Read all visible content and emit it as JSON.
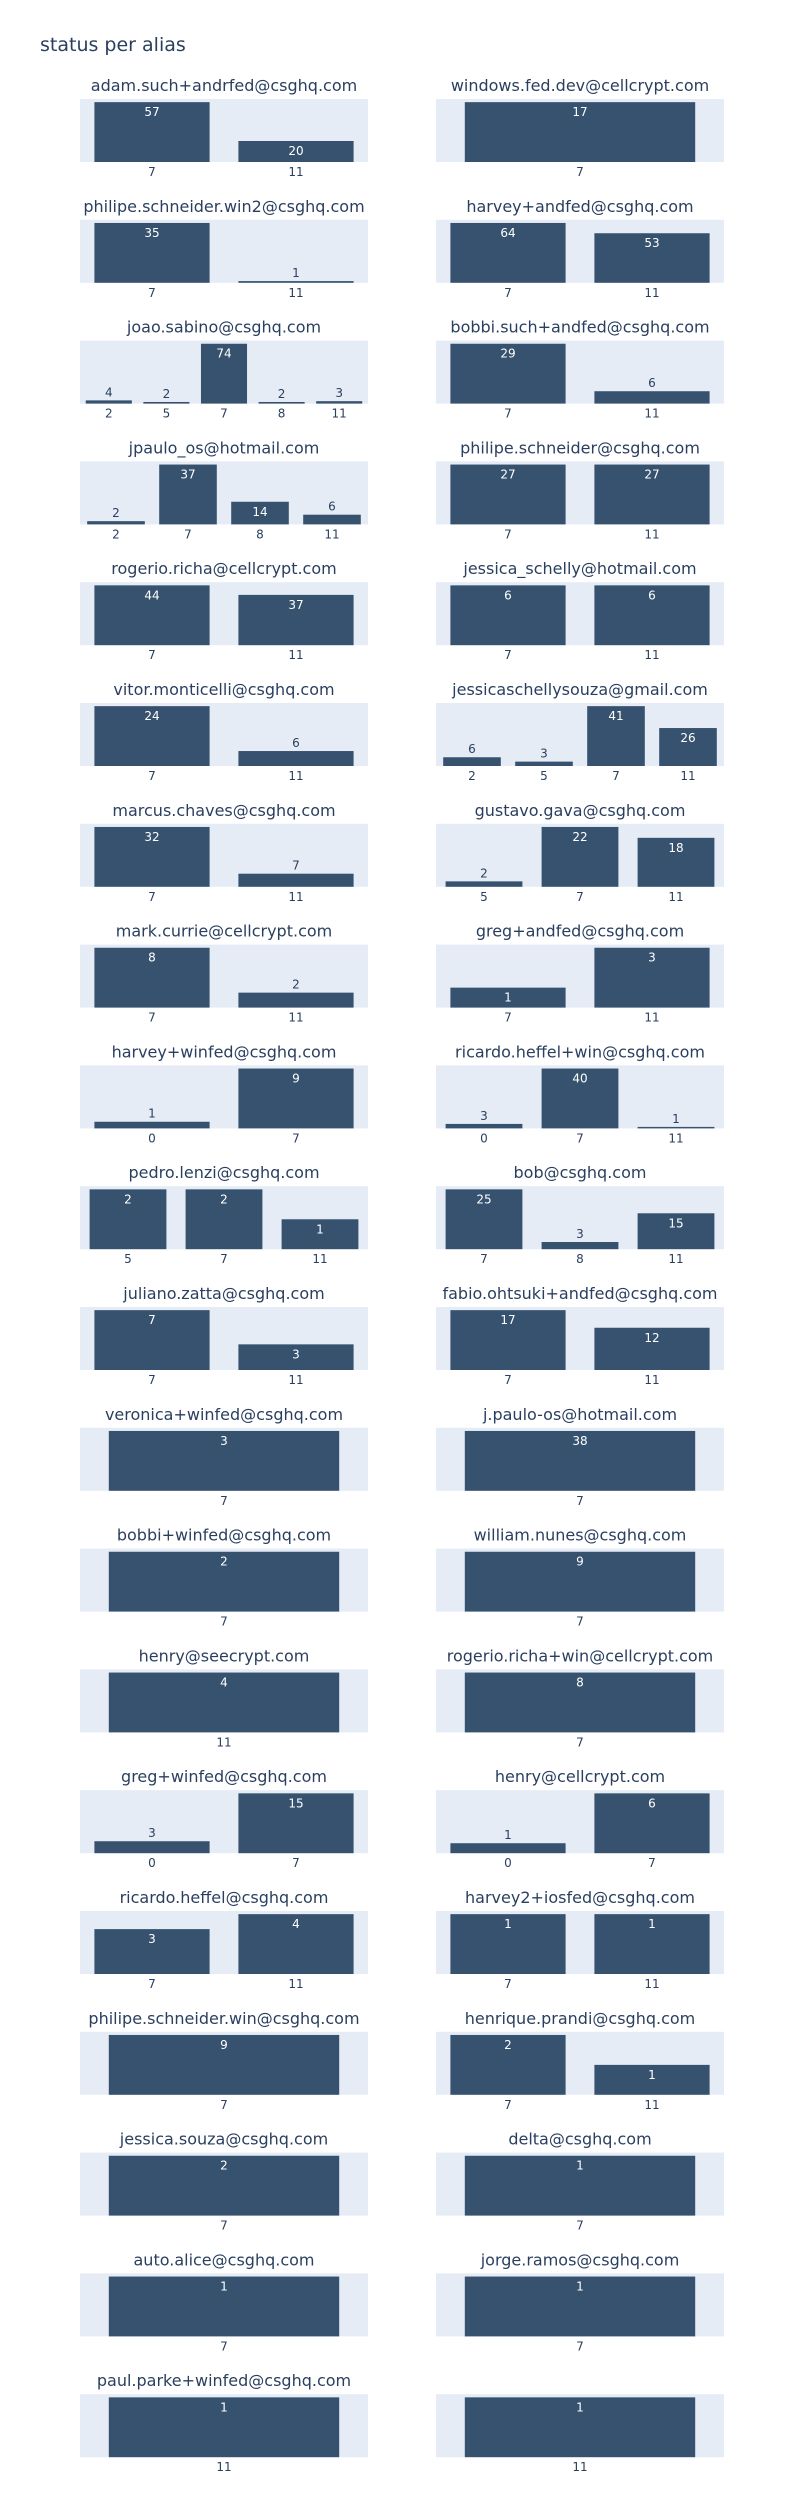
{
  "title": "status per alias",
  "colors": {
    "plot_bg": "#e5ecf6",
    "bar": "#36526e",
    "text": "#2a3f5f",
    "paper": "#ffffff"
  },
  "chart_data": [
    {
      "type": "bar",
      "title": "adam.such+andrfed@csghq.com",
      "categories": [
        "7",
        "11"
      ],
      "values": [
        57,
        20
      ]
    },
    {
      "type": "bar",
      "title": "windows.fed.dev@cellcrypt.com",
      "categories": [
        "7"
      ],
      "values": [
        17
      ]
    },
    {
      "type": "bar",
      "title": "philipe.schneider.win2@csghq.com",
      "categories": [
        "7",
        "11"
      ],
      "values": [
        35,
        1
      ]
    },
    {
      "type": "bar",
      "title": "harvey+andfed@csghq.com",
      "categories": [
        "7",
        "11"
      ],
      "values": [
        64,
        53
      ]
    },
    {
      "type": "bar",
      "title": "joao.sabino@csghq.com",
      "categories": [
        "2",
        "5",
        "7",
        "8",
        "11"
      ],
      "values": [
        4,
        2,
        74,
        2,
        3
      ]
    },
    {
      "type": "bar",
      "title": "bobbi.such+andfed@csghq.com",
      "categories": [
        "7",
        "11"
      ],
      "values": [
        29,
        6
      ]
    },
    {
      "type": "bar",
      "title": "jpaulo_os@hotmail.com",
      "categories": [
        "2",
        "7",
        "8",
        "11"
      ],
      "values": [
        2,
        37,
        14,
        6
      ]
    },
    {
      "type": "bar",
      "title": "philipe.schneider@csghq.com",
      "categories": [
        "7",
        "11"
      ],
      "values": [
        27,
        27
      ]
    },
    {
      "type": "bar",
      "title": "rogerio.richa@cellcrypt.com",
      "categories": [
        "7",
        "11"
      ],
      "values": [
        44,
        37
      ]
    },
    {
      "type": "bar",
      "title": "jessica_schelly@hotmail.com",
      "categories": [
        "7",
        "11"
      ],
      "values": [
        6,
        6
      ]
    },
    {
      "type": "bar",
      "title": "vitor.monticelli@csghq.com",
      "categories": [
        "7",
        "11"
      ],
      "values": [
        24,
        6
      ]
    },
    {
      "type": "bar",
      "title": "jessicaschellysouza@gmail.com",
      "categories": [
        "2",
        "5",
        "7",
        "11"
      ],
      "values": [
        6,
        3,
        41,
        26
      ]
    },
    {
      "type": "bar",
      "title": "marcus.chaves@csghq.com",
      "categories": [
        "7",
        "11"
      ],
      "values": [
        32,
        7
      ]
    },
    {
      "type": "bar",
      "title": "gustavo.gava@csghq.com",
      "categories": [
        "5",
        "7",
        "11"
      ],
      "values": [
        2,
        22,
        18
      ]
    },
    {
      "type": "bar",
      "title": "mark.currie@cellcrypt.com",
      "categories": [
        "7",
        "11"
      ],
      "values": [
        8,
        2
      ]
    },
    {
      "type": "bar",
      "title": "greg+andfed@csghq.com",
      "categories": [
        "7",
        "11"
      ],
      "values": [
        1,
        3
      ]
    },
    {
      "type": "bar",
      "title": "harvey+winfed@csghq.com",
      "categories": [
        "0",
        "7"
      ],
      "values": [
        1,
        9
      ]
    },
    {
      "type": "bar",
      "title": "ricardo.heffel+win@csghq.com",
      "categories": [
        "0",
        "7",
        "11"
      ],
      "values": [
        3,
        40,
        1
      ]
    },
    {
      "type": "bar",
      "title": "pedro.lenzi@csghq.com",
      "categories": [
        "5",
        "7",
        "11"
      ],
      "values": [
        2,
        2,
        1
      ]
    },
    {
      "type": "bar",
      "title": "bob@csghq.com",
      "categories": [
        "7",
        "8",
        "11"
      ],
      "values": [
        25,
        3,
        15
      ]
    },
    {
      "type": "bar",
      "title": "juliano.zatta@csghq.com",
      "categories": [
        "7",
        "11"
      ],
      "values": [
        7,
        3
      ]
    },
    {
      "type": "bar",
      "title": "fabio.ohtsuki+andfed@csghq.com",
      "categories": [
        "7",
        "11"
      ],
      "values": [
        17,
        12
      ]
    },
    {
      "type": "bar",
      "title": "veronica+winfed@csghq.com",
      "categories": [
        "7"
      ],
      "values": [
        3
      ]
    },
    {
      "type": "bar",
      "title": "j.paulo-os@hotmail.com",
      "categories": [
        "7"
      ],
      "values": [
        38
      ]
    },
    {
      "type": "bar",
      "title": "bobbi+winfed@csghq.com",
      "categories": [
        "7"
      ],
      "values": [
        2
      ]
    },
    {
      "type": "bar",
      "title": "william.nunes@csghq.com",
      "categories": [
        "7"
      ],
      "values": [
        9
      ]
    },
    {
      "type": "bar",
      "title": "henry@seecrypt.com",
      "categories": [
        "11"
      ],
      "values": [
        4
      ]
    },
    {
      "type": "bar",
      "title": "rogerio.richa+win@cellcrypt.com",
      "categories": [
        "7"
      ],
      "values": [
        8
      ]
    },
    {
      "type": "bar",
      "title": "greg+winfed@csghq.com",
      "categories": [
        "0",
        "7"
      ],
      "values": [
        3,
        15
      ]
    },
    {
      "type": "bar",
      "title": "henry@cellcrypt.com",
      "categories": [
        "0",
        "7"
      ],
      "values": [
        1,
        6
      ]
    },
    {
      "type": "bar",
      "title": "ricardo.heffel@csghq.com",
      "categories": [
        "7",
        "11"
      ],
      "values": [
        3,
        4
      ]
    },
    {
      "type": "bar",
      "title": "harvey2+iosfed@csghq.com",
      "categories": [
        "7",
        "11"
      ],
      "values": [
        1,
        1
      ]
    },
    {
      "type": "bar",
      "title": "philipe.schneider.win@csghq.com",
      "categories": [
        "7"
      ],
      "values": [
        9
      ]
    },
    {
      "type": "bar",
      "title": "henrique.prandi@csghq.com",
      "categories": [
        "7",
        "11"
      ],
      "values": [
        2,
        1
      ]
    },
    {
      "type": "bar",
      "title": "jessica.souza@csghq.com",
      "categories": [
        "7"
      ],
      "values": [
        2
      ]
    },
    {
      "type": "bar",
      "title": "delta@csghq.com",
      "categories": [
        "7"
      ],
      "values": [
        1
      ]
    },
    {
      "type": "bar",
      "title": "auto.alice@csghq.com",
      "categories": [
        "7"
      ],
      "values": [
        1
      ]
    },
    {
      "type": "bar",
      "title": "jorge.ramos@csghq.com",
      "categories": [
        "7"
      ],
      "values": [
        1
      ]
    },
    {
      "type": "bar",
      "title": "paul.parke+winfed@csghq.com",
      "categories": [
        "11"
      ],
      "values": [
        1
      ]
    },
    {
      "type": "bar",
      "title": "",
      "categories": [
        "11"
      ],
      "values": [
        1
      ]
    }
  ]
}
